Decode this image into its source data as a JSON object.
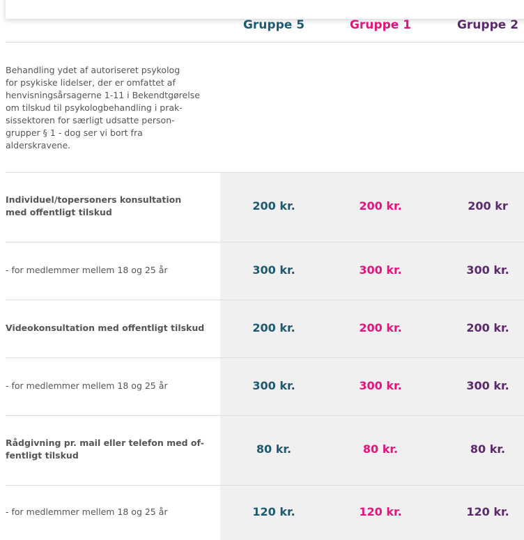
{
  "header": {
    "columns": [
      "Gruppe 5",
      "Gruppe 1",
      "Gruppe 2"
    ]
  },
  "description": [
    "Behandling ydet af autoriseret psykolog",
    "for psykiske lidelser, der er omfattet af",
    "henvisningsårsagerne 1-11 i Bekendtgørelse",
    "om tilskud til psykologbehandling i prak-",
    "sissektoren for særligt udsatte person-",
    "grupper § 1 - dog ser vi bort fra",
    "alderskravene."
  ],
  "table": {
    "rows": [
      {
        "label": [
          "Individuel/topersoners konsultation",
          "med offentligt tilskud"
        ],
        "bold": true,
        "values": [
          "200 kr.",
          "200 kr.",
          "200 kr"
        ]
      },
      {
        "label": [
          "- for medlemmer mellem 18 og 25 år"
        ],
        "bold": false,
        "values": [
          "300 kr.",
          "300 kr.",
          "300 kr."
        ]
      },
      {
        "label": [
          "Videokonsultation med offentligt tilskud"
        ],
        "bold": true,
        "values": [
          "200 kr.",
          "200 kr.",
          "200 kr."
        ]
      },
      {
        "label": [
          "- for medlemmer mellem 18 og 25 år"
        ],
        "bold": false,
        "values": [
          "300 kr.",
          "300 kr.",
          "300 kr."
        ]
      },
      {
        "label": [
          "Rådgivning pr. mail eller telefon med of-",
          "fentligt tilskud"
        ],
        "bold": true,
        "values": [
          "80 kr.",
          "80 kr.",
          "80 kr."
        ]
      },
      {
        "label": [
          "- for medlemmer mellem 18 og 25 år"
        ],
        "bold": false,
        "values": [
          "120 kr.",
          "120 kr.",
          "120 kr."
        ]
      }
    ]
  }
}
